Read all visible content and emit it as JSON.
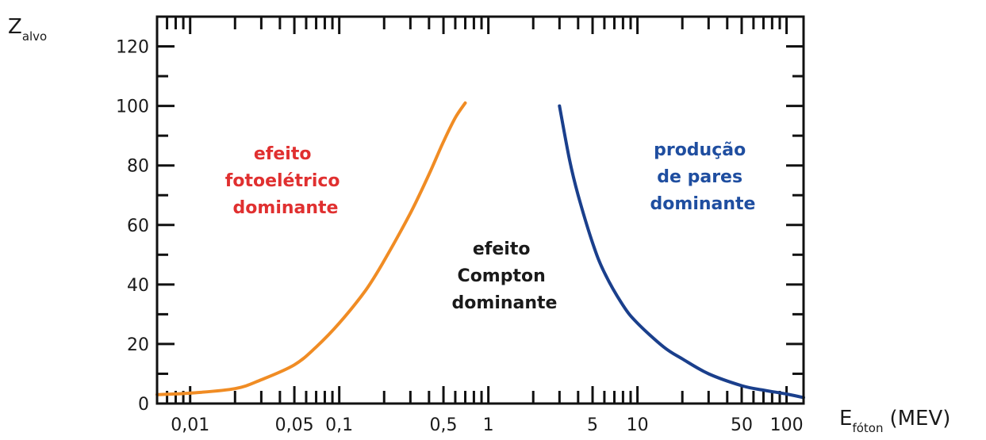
{
  "chart_data": {
    "type": "line",
    "title": "",
    "y_axis": {
      "symbol": "Z",
      "subscript": "alvo",
      "range": [
        0,
        130
      ],
      "ticks": [
        0,
        20,
        40,
        60,
        80,
        100,
        120
      ],
      "tick_labels": [
        "0",
        "20",
        "40",
        "60",
        "80",
        "100",
        "120"
      ]
    },
    "x_axis": {
      "symbol": "E",
      "subscript": "fóton",
      "unit": "(MEV)",
      "scale": "log",
      "range": [
        0.006,
        130
      ],
      "labeled_ticks": [
        0.01,
        0.05,
        0.1,
        0.5,
        1,
        5,
        10,
        50,
        100
      ],
      "tick_labels": [
        "0,01",
        "0,05",
        "0,1",
        "0,5",
        "1",
        "5",
        "10",
        "50",
        "100"
      ]
    },
    "grid": false,
    "series": [
      {
        "color": "#f08c24",
        "x": [
          0.006,
          0.01,
          0.02,
          0.03,
          0.05,
          0.07,
          0.1,
          0.15,
          0.2,
          0.3,
          0.4,
          0.5,
          0.6,
          0.7
        ],
        "y": [
          3,
          3.5,
          5,
          8,
          13,
          19,
          27,
          38,
          48,
          64,
          77,
          88,
          96,
          101
        ]
      },
      {
        "color": "#1a3f8c",
        "x": [
          3,
          3.5,
          4,
          5,
          6,
          8,
          10,
          15,
          20,
          30,
          50,
          70,
          100,
          130
        ],
        "y": [
          100,
          82,
          70,
          54,
          44,
          33,
          27,
          19,
          15,
          10,
          6,
          4.5,
          3.2,
          2
        ]
      }
    ],
    "annotations": [
      {
        "lines": [
          "efeito",
          "fotoelétrico",
          "dominante"
        ],
        "color": "#e03030"
      },
      {
        "lines": [
          "efeito",
          "Compton",
          "dominante"
        ],
        "color": "#1a1a1a"
      },
      {
        "lines": [
          "produção",
          "de pares",
          "dominante"
        ],
        "color": "#1f4ea0"
      }
    ]
  }
}
